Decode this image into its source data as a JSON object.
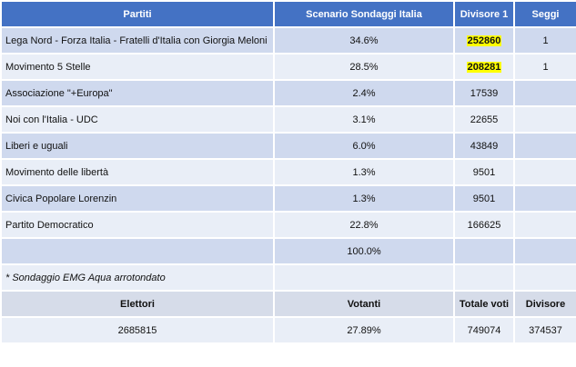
{
  "table": {
    "header": [
      "Partiti",
      "Scenario Sondaggi Italia",
      "Divisore 1",
      "Seggi"
    ],
    "rows": [
      {
        "cells": [
          "Lega Nord - Forza Italia - Fratelli d'Italia con Giorgia Meloni",
          "34.6%",
          "252860",
          "1"
        ],
        "highlight": true
      },
      {
        "cells": [
          "Movimento 5 Stelle",
          "28.5%",
          "208281",
          "1"
        ],
        "highlight": true
      },
      {
        "cells": [
          "Associazione \"+Europa\"",
          "2.4%",
          "17539",
          null
        ]
      },
      {
        "cells": [
          "Noi con l'Italia - UDC",
          "3.1%",
          "22655",
          null
        ]
      },
      {
        "cells": [
          "Liberi e uguali",
          "6.0%",
          "43849",
          null
        ]
      },
      {
        "cells": [
          "Movimento delle libertà",
          "1.3%",
          "9501",
          null
        ]
      },
      {
        "cells": [
          "Civica Popolare Lorenzin",
          "1.3%",
          "9501",
          null
        ]
      },
      {
        "cells": [
          "Partito Democratico",
          "22.8%",
          "166625",
          null
        ]
      },
      {
        "cells": [
          null,
          "100.0%",
          null,
          null
        ]
      },
      {
        "cells": [
          "* Sondaggio EMG Aqua arrotondato",
          null,
          null,
          null
        ],
        "italic": true
      }
    ],
    "summary": {
      "header": [
        "Elettori",
        "Votanti",
        "Totale voti",
        "Divisore"
      ],
      "values": [
        "2685815",
        "27.89%",
        "749074",
        "374537"
      ]
    }
  }
}
